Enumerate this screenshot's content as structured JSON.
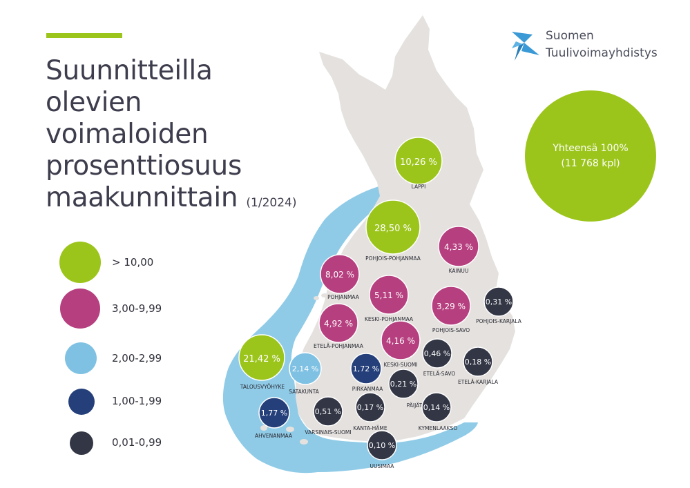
{
  "title": {
    "lines": [
      "Suunnitteilla",
      "olevien",
      "voimaloiden",
      "prosenttiosuus",
      "maakunnittain"
    ],
    "date": "(1/2024)"
  },
  "logo": {
    "line1": "Suomen",
    "line2": "Tuulivoimayhdistys",
    "icon": "wind-turbine-logo-icon"
  },
  "total": {
    "line1": "Yhteensä 100%",
    "line2": "(11 768 kpl)"
  },
  "legend": [
    {
      "label": "> 10,00",
      "color": "#9cc51c"
    },
    {
      "label": "3,00-9,99",
      "color": "#b63f7f"
    },
    {
      "label": "2,00-2,99",
      "color": "#7fc1e3"
    },
    {
      "label": "1,00-1,99",
      "color": "#243f7a"
    },
    {
      "label": "0,01-0,99",
      "color": "#333645"
    }
  ],
  "colors": {
    "land": "#e4e1de",
    "sea": "#8fcbe7",
    "accent": "#9cc51c",
    "logo": "#3b9ad6"
  },
  "regions": [
    {
      "name": "LAPPI",
      "value": "10,26 %",
      "category": 0
    },
    {
      "name": "POHJOIS-POHJANMAA",
      "value": "28,50 %",
      "category": 0
    },
    {
      "name": "KAINUU",
      "value": "4,33 %",
      "category": 1
    },
    {
      "name": "POHJANMAA",
      "value": "8,02 %",
      "category": 1
    },
    {
      "name": "KESKI-POHJANMAA",
      "value": "5,11 %",
      "category": 1
    },
    {
      "name": "POHJOIS-SAVO",
      "value": "3,29 %",
      "category": 1
    },
    {
      "name": "POHJOIS-KARJALA",
      "value": "0,31 %",
      "category": 4
    },
    {
      "name": "ETELÄ-POHJANMAA",
      "value": "4,92 %",
      "category": 1
    },
    {
      "name": "KESKI-SUOMI",
      "value": "4,16 %",
      "category": 1
    },
    {
      "name": "ETELÄ-SAVO",
      "value": "0,46 %",
      "category": 4
    },
    {
      "name": "ETELÄ-KARJALA",
      "value": "0,18 %",
      "category": 4
    },
    {
      "name": "TALOUSVYÖHYKE",
      "value": "21,42 %",
      "category": 0
    },
    {
      "name": "SATAKUNTA",
      "value": "2,14 %",
      "category": 2
    },
    {
      "name": "PIRKANMAA",
      "value": "1,72 %",
      "category": 3
    },
    {
      "name": "PÄIJÄT-HÄME",
      "value": "0,21 %",
      "category": 4
    },
    {
      "name": "AHVENANMAA",
      "value": "1,77 %",
      "category": 3
    },
    {
      "name": "VARSINAIS-SUOMI",
      "value": "0,51 %",
      "category": 4
    },
    {
      "name": "KANTA-HÄME",
      "value": "0,17 %",
      "category": 4
    },
    {
      "name": "KYMENLAAKSO",
      "value": "0,14 %",
      "category": 4
    },
    {
      "name": "UUSIMAA",
      "value": "0,10 %",
      "category": 4
    }
  ]
}
